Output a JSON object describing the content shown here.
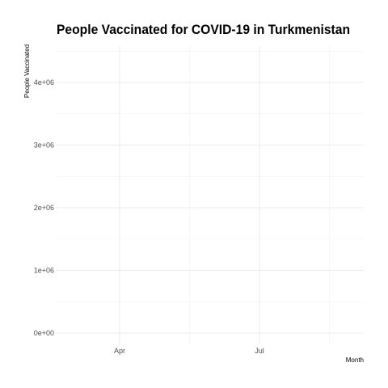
{
  "chart_data": {
    "type": "line",
    "title": "People Vaccinated for COVID-19 in Turkmenistan",
    "xlabel": "Month",
    "ylabel": "People Vaccinated",
    "x_ticks": [
      "Apr",
      "Jul"
    ],
    "y_ticks": [
      "0e+00",
      "1e+06",
      "2e+06",
      "3e+06",
      "4e+06"
    ],
    "ylim": [
      0,
      4000000
    ],
    "grid": true,
    "series": []
  }
}
